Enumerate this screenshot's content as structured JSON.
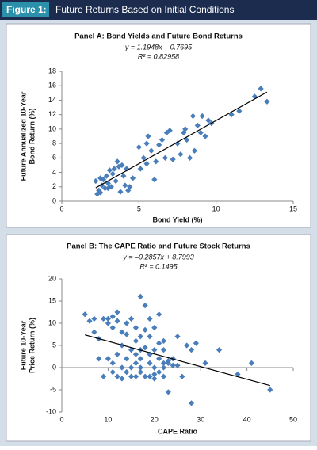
{
  "header": {
    "label": "Figure 1:",
    "title": "Future Returns Based on Initial Conditions"
  },
  "chart_data": [
    {
      "type": "scatter",
      "title": "Panel A: Bond Yields and Future Bond Returns",
      "trendline": {
        "slope": 1.1948,
        "intercept": -0.7695,
        "label": "y = 1.1948x – 0.7695"
      },
      "r2": {
        "value": 0.82958,
        "label": "R² = 0.82958"
      },
      "xlabel": "Bond Yield (%)",
      "ylabel": [
        "Future Annualized 10-Year",
        "Bond Return (%)"
      ],
      "xlim": [
        0,
        15
      ],
      "xticks": [
        0,
        5,
        10,
        15
      ],
      "ylim": [
        0,
        18
      ],
      "yticks": [
        0,
        2,
        4,
        6,
        8,
        10,
        12,
        14,
        16,
        18
      ],
      "color": "#4a7ebb",
      "x": [
        2.2,
        2.3,
        2.4,
        2.5,
        2.6,
        2.7,
        2.8,
        2.9,
        3.0,
        3.1,
        3.2,
        3.3,
        3.4,
        3.5,
        3.6,
        3.7,
        3.8,
        3.9,
        4.0,
        4.1,
        4.2,
        4.3,
        4.4,
        4.6,
        5.0,
        5.1,
        5.3,
        5.5,
        5.6,
        5.8,
        6.0,
        6.1,
        6.3,
        6.5,
        6.7,
        6.8,
        7.0,
        7.2,
        7.5,
        7.7,
        7.9,
        8.0,
        8.1,
        8.3,
        8.5,
        8.6,
        8.8,
        9.0,
        9.1,
        9.3,
        9.5,
        9.7,
        11.0,
        11.5,
        12.5,
        12.9,
        13.3,
        2.5,
        3.0,
        5.5
      ],
      "y": [
        2.8,
        1.0,
        1.5,
        3.2,
        2.2,
        3.0,
        1.8,
        3.5,
        2.5,
        4.3,
        2.0,
        3.8,
        4.5,
        2.8,
        5.5,
        4.8,
        1.3,
        5.0,
        3.5,
        2.2,
        4.5,
        1.5,
        2.0,
        3.2,
        7.5,
        4.5,
        6.0,
        8.0,
        9.0,
        7.0,
        3.0,
        5.5,
        7.8,
        8.5,
        6.0,
        9.5,
        9.8,
        5.8,
        8.0,
        6.5,
        9.5,
        10.0,
        8.5,
        6.0,
        11.8,
        7.0,
        10.5,
        9.5,
        11.8,
        9.0,
        11.2,
        10.8,
        12.0,
        12.5,
        14.5,
        15.6,
        13.8,
        1.2,
        1.8,
        5.2
      ]
    },
    {
      "type": "scatter",
      "title": "Panel B: The CAPE Ratio and Future Stock Returns",
      "trendline": {
        "slope": -0.2857,
        "intercept": 8.7993,
        "label": "y = –0.2857x + 8.7993"
      },
      "r2": {
        "value": 0.1495,
        "label": "R² = 0.1495"
      },
      "xlabel": "CAPE Ratio",
      "ylabel": [
        "Future 10-Year",
        "Price Return (%)"
      ],
      "xlim": [
        0,
        50
      ],
      "xticks": [
        0,
        10,
        20,
        30,
        40,
        50
      ],
      "ylim": [
        -10,
        20
      ],
      "yticks": [
        -10,
        -5,
        0,
        5,
        10,
        15,
        20
      ],
      "color": "#4a7ebb",
      "x": [
        5,
        6,
        7,
        7,
        8,
        9,
        9,
        10,
        10,
        10,
        11,
        11,
        11,
        11,
        12,
        12,
        12,
        12,
        13,
        13,
        13,
        13,
        14,
        14,
        14,
        14,
        15,
        15,
        15,
        15,
        16,
        16,
        16,
        16,
        16,
        17,
        17,
        17,
        17,
        17,
        17,
        18,
        18,
        18,
        18,
        19,
        19,
        19,
        19,
        19,
        20,
        20,
        20,
        20,
        21,
        21,
        21,
        21,
        22,
        22,
        22,
        22,
        22,
        23,
        23,
        24,
        24,
        25,
        25,
        26,
        27,
        28,
        28,
        29,
        31,
        34,
        38,
        41,
        45,
        8,
        20,
        23
      ],
      "y": [
        12,
        10.5,
        11,
        8,
        6.5,
        -2,
        11,
        10,
        2,
        11,
        9,
        -1,
        1,
        11.5,
        10.5,
        3,
        -2,
        12.5,
        0,
        8,
        5,
        -2.5,
        10,
        2,
        -1,
        7.5,
        0,
        4,
        -2,
        11,
        3,
        1,
        9,
        -2,
        6,
        16,
        4,
        -1,
        7,
        0,
        2,
        14,
        -2,
        8.5,
        4.5,
        1,
        7,
        -2,
        3,
        11,
        0,
        4,
        -1.5,
        9,
        12,
        2,
        -1,
        5.5,
        1,
        0,
        4,
        -2,
        6,
        1,
        -5.5,
        2,
        0.5,
        7,
        0.5,
        -2,
        5,
        -8,
        4,
        5.5,
        1,
        4,
        -1.5,
        1,
        -5,
        2,
        -2.5,
        1.5
      ]
    }
  ]
}
